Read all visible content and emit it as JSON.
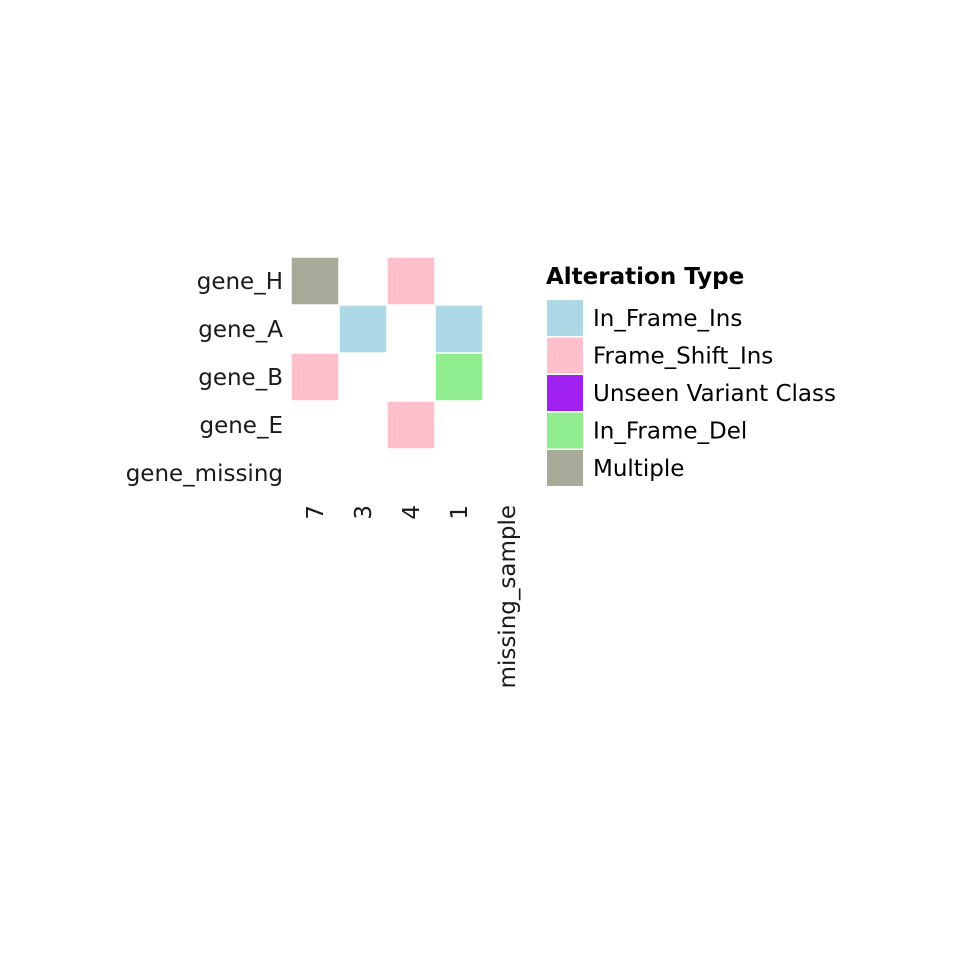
{
  "chart_data": {
    "type": "heatmap",
    "title": "",
    "xlabel": "",
    "ylabel": "",
    "x_categories": [
      "7",
      "3",
      "4",
      "1",
      "missing_sample"
    ],
    "y_categories": [
      "gene_H",
      "gene_A",
      "gene_B",
      "gene_E",
      "gene_missing"
    ],
    "cells": [
      {
        "gene": "gene_H",
        "sample": "7",
        "alteration": "Multiple"
      },
      {
        "gene": "gene_H",
        "sample": "4",
        "alteration": "Frame_Shift_Ins"
      },
      {
        "gene": "gene_A",
        "sample": "3",
        "alteration": "In_Frame_Ins"
      },
      {
        "gene": "gene_A",
        "sample": "1",
        "alteration": "In_Frame_Ins"
      },
      {
        "gene": "gene_B",
        "sample": "7",
        "alteration": "Frame_Shift_Ins"
      },
      {
        "gene": "gene_B",
        "sample": "1",
        "alteration": "In_Frame_Del"
      },
      {
        "gene": "gene_E",
        "sample": "4",
        "alteration": "Frame_Shift_Ins"
      }
    ],
    "legend": {
      "title": "Alteration Type",
      "position": "right",
      "entries": [
        {
          "label": "In_Frame_Ins",
          "color": "#ADD8E6"
        },
        {
          "label": "Frame_Shift_Ins",
          "color": "#FFC0CB"
        },
        {
          "label": "Unseen Variant Class",
          "color": "#A020F0"
        },
        {
          "label": "In_Frame_Del",
          "color": "#90EE90"
        },
        {
          "label": "Multiple",
          "color": "#A8AB9A"
        }
      ]
    },
    "grid": false
  }
}
